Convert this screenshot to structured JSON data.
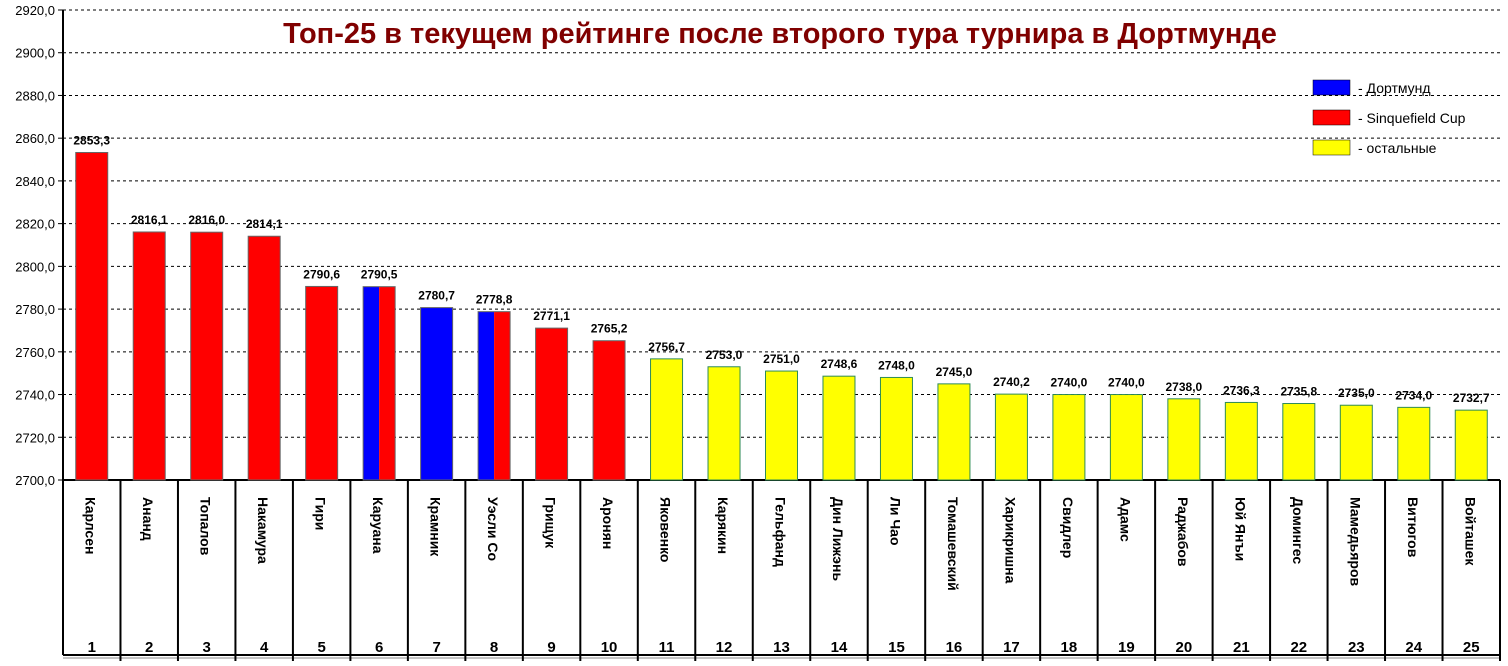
{
  "chart_data": {
    "type": "bar",
    "title": "Топ-25 в текущем рейтинге после второго тура турнира в Дортмунде",
    "xlabel": "",
    "ylabel": "",
    "ylim": [
      2700,
      2920
    ],
    "ytick_step": 20,
    "grid": true,
    "legend_placement": "top-right",
    "legend": [
      {
        "label": "- Дортмунд",
        "color": "#0000FF"
      },
      {
        "label": "- Sinquefield Cup",
        "color": "#FF0000"
      },
      {
        "label": "- остальные",
        "color": "#FFFF00"
      }
    ],
    "ranks": [
      "1",
      "2",
      "3",
      "4",
      "5",
      "6",
      "7",
      "8",
      "9",
      "10",
      "11",
      "12",
      "13",
      "14",
      "15",
      "16",
      "17",
      "18",
      "19",
      "20",
      "21",
      "22",
      "23",
      "24",
      "25"
    ],
    "categories": [
      "Карлсен",
      "Ананд",
      "Топалов",
      "Накамура",
      "Гири",
      "Каруана",
      "Крамник",
      "Уэсли Со",
      "Грищук",
      "Аронян",
      "Яковенко",
      "Карякин",
      "Гельфанд",
      "Дин Лижэнь",
      "Ли Чао",
      "Томашевский",
      "Харикришна",
      "Свидлер",
      "Адамс",
      "Раджабов",
      "Юй Янъи",
      "Домингес",
      "Мамедьяров",
      "Витюгов",
      "Войташек"
    ],
    "values": [
      2853.3,
      2816.1,
      2816.0,
      2814.1,
      2790.6,
      2790.5,
      2780.7,
      2778.8,
      2771.1,
      2765.2,
      2756.7,
      2753.0,
      2751.0,
      2748.6,
      2748.0,
      2745.0,
      2740.2,
      2740.0,
      2740.0,
      2738.0,
      2736.3,
      2735.8,
      2735.0,
      2734.0,
      2732.7
    ],
    "value_labels": [
      "2853,3",
      "2816,1",
      "2816,0",
      "2814,1",
      "2790,6",
      "2790,5",
      "2780,7",
      "2778,8",
      "2771,1",
      "2765,2",
      "2756,7",
      "2753,0",
      "2751,0",
      "2748,6",
      "2748,0",
      "2745,0",
      "2740,2",
      "2740,0",
      "2740,0",
      "2738,0",
      "2736,3",
      "2735,8",
      "2735,0",
      "2734,0",
      "2732,7"
    ],
    "groups": [
      "sinquefield",
      "sinquefield",
      "sinquefield",
      "sinquefield",
      "sinquefield",
      "both",
      "dortmund",
      "both",
      "sinquefield",
      "sinquefield",
      "other",
      "other",
      "other",
      "other",
      "other",
      "other",
      "other",
      "other",
      "other",
      "other",
      "other",
      "other",
      "other",
      "other",
      "other"
    ],
    "colors": {
      "dortmund": "#0000FF",
      "sinquefield": "#FF0000",
      "other": "#FFFF00",
      "title": "#800000"
    }
  }
}
